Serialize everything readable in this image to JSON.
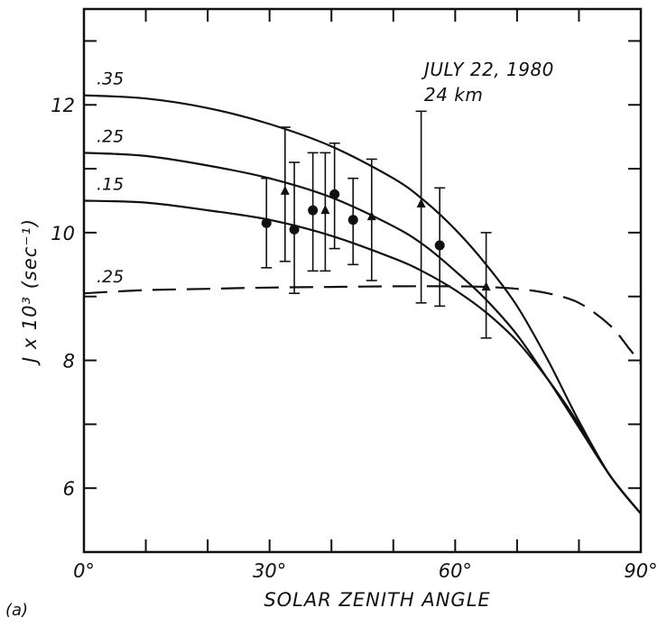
{
  "chart_data": {
    "type": "line",
    "title": "",
    "panel_label": "(a)",
    "xlabel": "SOLAR ZENITH ANGLE",
    "ylabel": "J x 10³ (sec⁻¹)",
    "xlim": [
      0,
      90
    ],
    "ylim": [
      5,
      13.5
    ],
    "x_ticks": [
      {
        "value": 0,
        "label": "0°"
      },
      {
        "value": 30,
        "label": "30°"
      },
      {
        "value": 60,
        "label": "60°"
      },
      {
        "value": 90,
        "label": "90°"
      }
    ],
    "y_ticks": [
      {
        "value": 6,
        "label": "6"
      },
      {
        "value": 8,
        "label": "8"
      },
      {
        "value": 10,
        "label": "10"
      },
      {
        "value": 12,
        "label": "12"
      }
    ],
    "grid": false,
    "annotations": [
      "JULY 22, 1980",
      "24 km"
    ],
    "series": [
      {
        "label": ".35",
        "style": "solid",
        "x": [
          0,
          10,
          20,
          30,
          40,
          50,
          55,
          60,
          65,
          70,
          75,
          80,
          85,
          90
        ],
        "y": [
          12.15,
          12.1,
          11.95,
          11.7,
          11.35,
          10.85,
          10.5,
          10.05,
          9.5,
          8.85,
          8.0,
          7.05,
          6.2,
          5.6
        ]
      },
      {
        "label": ".25",
        "style": "solid",
        "x": [
          0,
          10,
          20,
          30,
          40,
          50,
          55,
          60,
          65,
          70,
          75,
          80,
          85,
          90
        ],
        "y": [
          11.25,
          11.2,
          11.05,
          10.85,
          10.55,
          10.1,
          9.8,
          9.4,
          8.95,
          8.4,
          7.7,
          6.95,
          6.2,
          5.6
        ]
      },
      {
        "label": ".15",
        "style": "solid",
        "x": [
          0,
          10,
          20,
          30,
          40,
          50,
          55,
          60,
          65,
          70,
          75,
          80,
          85,
          90
        ],
        "y": [
          10.5,
          10.47,
          10.35,
          10.2,
          9.95,
          9.6,
          9.38,
          9.1,
          8.75,
          8.3,
          7.7,
          7.0,
          6.2,
          5.6
        ]
      },
      {
        "label": ".25",
        "style": "dashed",
        "x": [
          0,
          10,
          20,
          30,
          40,
          50,
          60,
          65,
          70,
          75,
          80,
          85,
          88,
          90
        ],
        "y": [
          9.05,
          9.1,
          9.12,
          9.14,
          9.15,
          9.16,
          9.16,
          9.15,
          9.12,
          9.05,
          8.9,
          8.55,
          8.2,
          7.95
        ]
      }
    ],
    "observations": [
      {
        "marker": "circle",
        "x": 29.5,
        "y": 10.15,
        "low": 9.45,
        "high": 10.85
      },
      {
        "marker": "triangle",
        "x": 32.5,
        "y": 10.65,
        "low": 9.55,
        "high": 11.65
      },
      {
        "marker": "circle",
        "x": 34,
        "y": 10.05,
        "low": 9.05,
        "high": 11.1
      },
      {
        "marker": "circle",
        "x": 37,
        "y": 10.35,
        "low": 9.4,
        "high": 11.25
      },
      {
        "marker": "triangle",
        "x": 39,
        "y": 10.35,
        "low": 9.4,
        "high": 11.25
      },
      {
        "marker": "circle",
        "x": 40.5,
        "y": 10.6,
        "low": 9.75,
        "high": 11.4
      },
      {
        "marker": "circle",
        "x": 43.5,
        "y": 10.2,
        "low": 9.5,
        "high": 10.85
      },
      {
        "marker": "triangle",
        "x": 46.5,
        "y": 10.25,
        "low": 9.25,
        "high": 11.15
      },
      {
        "marker": "triangle",
        "x": 54.5,
        "y": 10.45,
        "low": 8.9,
        "high": 11.9
      },
      {
        "marker": "circle",
        "x": 57.5,
        "y": 9.8,
        "low": 8.85,
        "high": 10.7
      },
      {
        "marker": "triangle",
        "x": 65,
        "y": 9.15,
        "low": 8.35,
        "high": 10.0
      }
    ]
  }
}
